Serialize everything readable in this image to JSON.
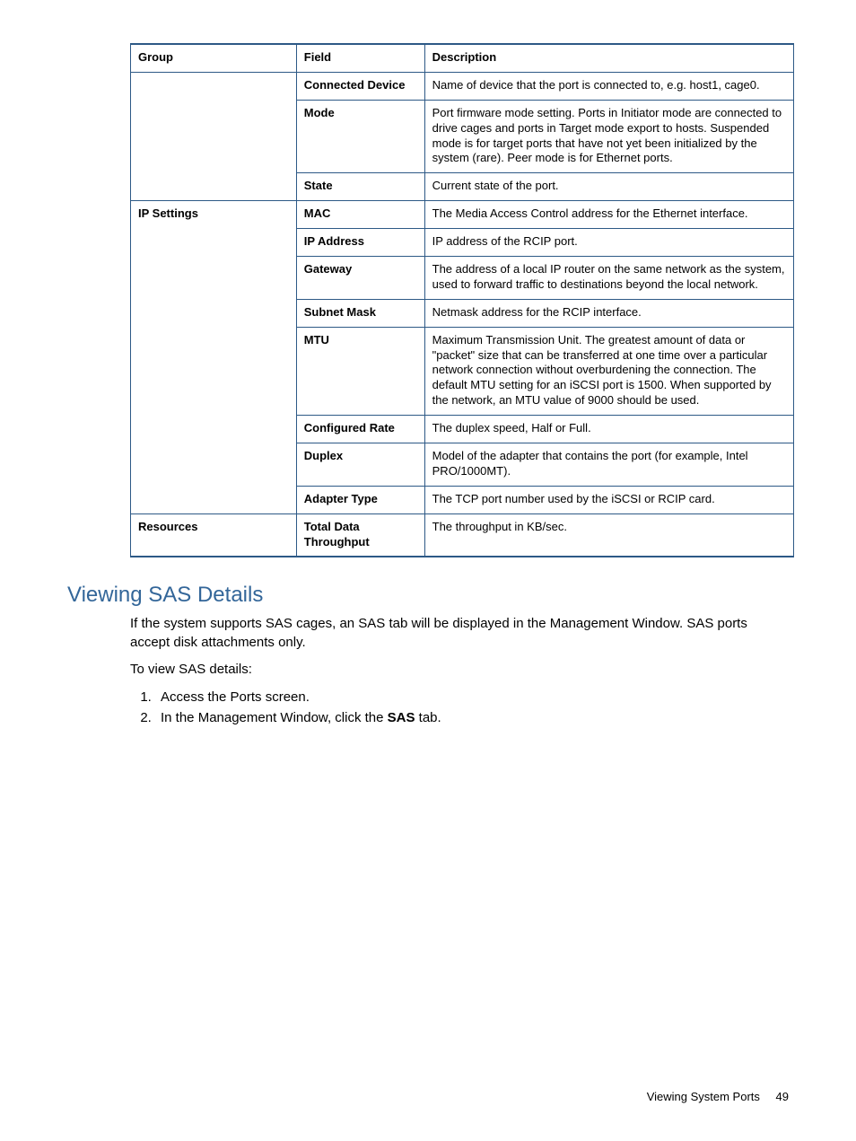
{
  "table": {
    "headers": [
      "Group",
      "Field",
      "Description"
    ],
    "rows": [
      {
        "group": "",
        "field": "Connected Device",
        "desc": "Name of device that the port is connected to, e.g. host1, cage0."
      },
      {
        "group": "",
        "field": "Mode",
        "desc": "Port firmware mode setting. Ports in Initiator mode are connected to drive cages and ports in Target mode export to hosts. Suspended mode is for target ports that have not yet been initialized by the system (rare). Peer mode is for Ethernet ports."
      },
      {
        "group": "",
        "field": "State",
        "desc": "Current state of the port."
      },
      {
        "group": "IP Settings",
        "field": "MAC",
        "desc": "The Media Access Control address for the Ethernet interface."
      },
      {
        "group": "",
        "field": "IP Address",
        "desc": "IP address of the RCIP port."
      },
      {
        "group": "",
        "field": "Gateway",
        "desc": "The address of a local IP router on the same network as the system, used to forward traffic to destinations beyond the local network."
      },
      {
        "group": "",
        "field": "Subnet Mask",
        "desc": "Netmask address for the RCIP interface."
      },
      {
        "group": "",
        "field": "MTU",
        "desc": "Maximum Transmission Unit. The greatest amount of data or \"packet\" size that can be transferred at one time over a particular network connection without overburdening the connection. The default MTU setting for an iSCSI port is 1500. When supported by the network, an MTU value of 9000 should be used."
      },
      {
        "group": "",
        "field": "Configured Rate",
        "desc": "The duplex speed, Half or Full."
      },
      {
        "group": "",
        "field": "Duplex",
        "desc": "Model of the adapter that contains the port (for example, Intel PRO/1000MT)."
      },
      {
        "group": "",
        "field": "Adapter Type",
        "desc": "The TCP port number used by the iSCSI or RCIP card."
      },
      {
        "group": "Resources",
        "field": "Total Data Throughput",
        "desc": "The throughput in KB/sec."
      }
    ]
  },
  "section": {
    "heading": "Viewing SAS Details",
    "para1": "If the system supports SAS cages, an SAS tab will be displayed in the Management Window. SAS ports accept disk attachments only.",
    "para2": "To view SAS details:",
    "step1": "Access the Ports screen.",
    "step2_pre": "In the Management Window, click the ",
    "step2_bold": "SAS",
    "step2_post": " tab."
  },
  "footer": {
    "label": "Viewing System Ports",
    "page": "49"
  }
}
